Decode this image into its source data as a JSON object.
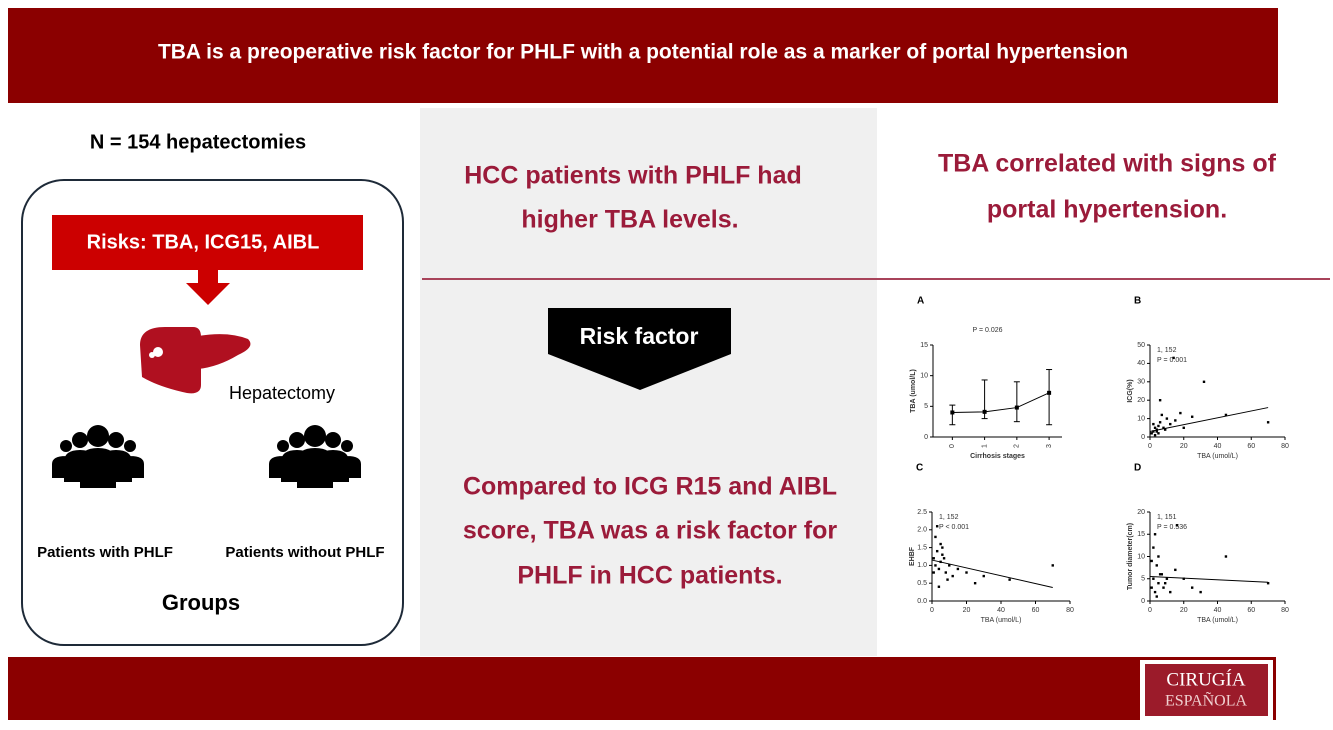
{
  "header": {
    "title": "TBA is a preoperative risk factor for PHLF with a potential role as a marker of portal hypertension"
  },
  "left": {
    "count": "N = 154 hepatectomies",
    "risks": "Risks: TBA, ICG15, AIBL",
    "procedure": "Hepatectomy",
    "group_with": "Patients with PHLF",
    "group_without": "Patients without PHLF",
    "groups": "Groups"
  },
  "middle": {
    "finding1": [
      "HCC patients with PHLF had",
      "higher TBA levels."
    ],
    "arrow": "Risk factor",
    "finding2": [
      "Compared to ICG R15 and AIBL",
      "score, TBA was a risk factor for",
      "PHLF in HCC patients."
    ]
  },
  "right": {
    "title": [
      "TBA correlated with signs of",
      "portal hypertension."
    ],
    "plots": [
      {
        "label": "A",
        "type": "errorline",
        "xlabel": "Cirrhosis stages",
        "ylabel": "TBA (umol/L)",
        "notes": [
          "P = 0.026"
        ],
        "xlim": [
          -0.6,
          3.4
        ],
        "ylim": [
          0,
          15
        ],
        "xticks": [
          0,
          1,
          2,
          3
        ],
        "yticks": [
          0,
          5,
          10,
          15
        ],
        "x": [
          0,
          1,
          2,
          3
        ],
        "values": [
          4,
          4.1,
          4.8,
          7.2
        ],
        "low": [
          2,
          3,
          2.5,
          2
        ],
        "high": [
          5.2,
          9.3,
          9,
          11
        ]
      },
      {
        "label": "B",
        "type": "scatter",
        "xlabel": "TBA (umol/L)",
        "ylabel": "ICG(%)",
        "notes": [
          "1, 152",
          "P = 0.001"
        ],
        "xlim": [
          0,
          80
        ],
        "ylim": [
          0,
          50
        ],
        "xticks": [
          0,
          20,
          40,
          60,
          80
        ],
        "yticks": [
          0,
          10,
          20,
          30,
          40,
          50
        ],
        "x": [
          1,
          2,
          3,
          4,
          5,
          6,
          8,
          10,
          12,
          15,
          3,
          5,
          7,
          9,
          2,
          4,
          18,
          25,
          32,
          45,
          70,
          14,
          20,
          6
        ],
        "y": [
          2,
          3,
          5,
          4,
          6,
          8,
          5,
          10,
          7,
          9,
          1,
          2,
          12,
          4,
          7,
          3,
          13,
          11,
          30,
          12,
          8,
          43,
          5,
          20
        ],
        "fit": {
          "x": [
            0,
            70
          ],
          "y": [
            3,
            16
          ]
        }
      },
      {
        "label": "C",
        "type": "scatter",
        "xlabel": "TBA (umol/L)",
        "ylabel": "EHBF",
        "notes": [
          "1, 152",
          "P < 0.001"
        ],
        "xlim": [
          0,
          80
        ],
        "ylim": [
          0,
          2.5
        ],
        "xticks": [
          0,
          20,
          40,
          60,
          80
        ],
        "yticks": [
          {
            "value": 0,
            "label": "0.0"
          },
          0.5,
          {
            "value": 1,
            "label": "1.0"
          },
          1.5,
          {
            "value": 2,
            "label": "2.0"
          },
          2.5
        ],
        "x": [
          1,
          2,
          3,
          4,
          5,
          6,
          8,
          10,
          12,
          15,
          2,
          3,
          5,
          7,
          9,
          20,
          25,
          30,
          45,
          70,
          4,
          6,
          1
        ],
        "y": [
          1.2,
          1.0,
          1.4,
          0.9,
          1.1,
          1.3,
          0.8,
          1.0,
          0.7,
          0.9,
          1.8,
          2.1,
          1.6,
          1.2,
          0.6,
          0.8,
          0.5,
          0.7,
          0.6,
          1.0,
          0.4,
          1.5,
          0.8
        ],
        "fit": {
          "x": [
            0,
            70
          ],
          "y": [
            1.15,
            0.38
          ]
        }
      },
      {
        "label": "D",
        "type": "scatter",
        "xlabel": "TBA (umol/L)",
        "ylabel": "Tumor diameter(cm)",
        "notes": [
          "1, 151",
          "P = 0.536"
        ],
        "xlim": [
          0,
          80
        ],
        "ylim": [
          0,
          20
        ],
        "xticks": [
          0,
          20,
          40,
          60,
          80
        ],
        "yticks": [
          0,
          5,
          10,
          15,
          20
        ],
        "x": [
          1,
          2,
          3,
          4,
          5,
          6,
          8,
          10,
          12,
          15,
          2,
          3,
          5,
          7,
          9,
          20,
          25,
          30,
          45,
          70,
          4,
          16,
          1
        ],
        "y": [
          3,
          5,
          2,
          8,
          4,
          6,
          3,
          5,
          2,
          7,
          12,
          15,
          10,
          6,
          4,
          5,
          3,
          2,
          10,
          4,
          1,
          17,
          9
        ],
        "fit": {
          "x": [
            0,
            70
          ],
          "y": [
            5.5,
            4.2
          ]
        }
      }
    ]
  },
  "logo": {
    "line1": "CIRUGÍA",
    "line2": "ESPAÑOLA"
  }
}
